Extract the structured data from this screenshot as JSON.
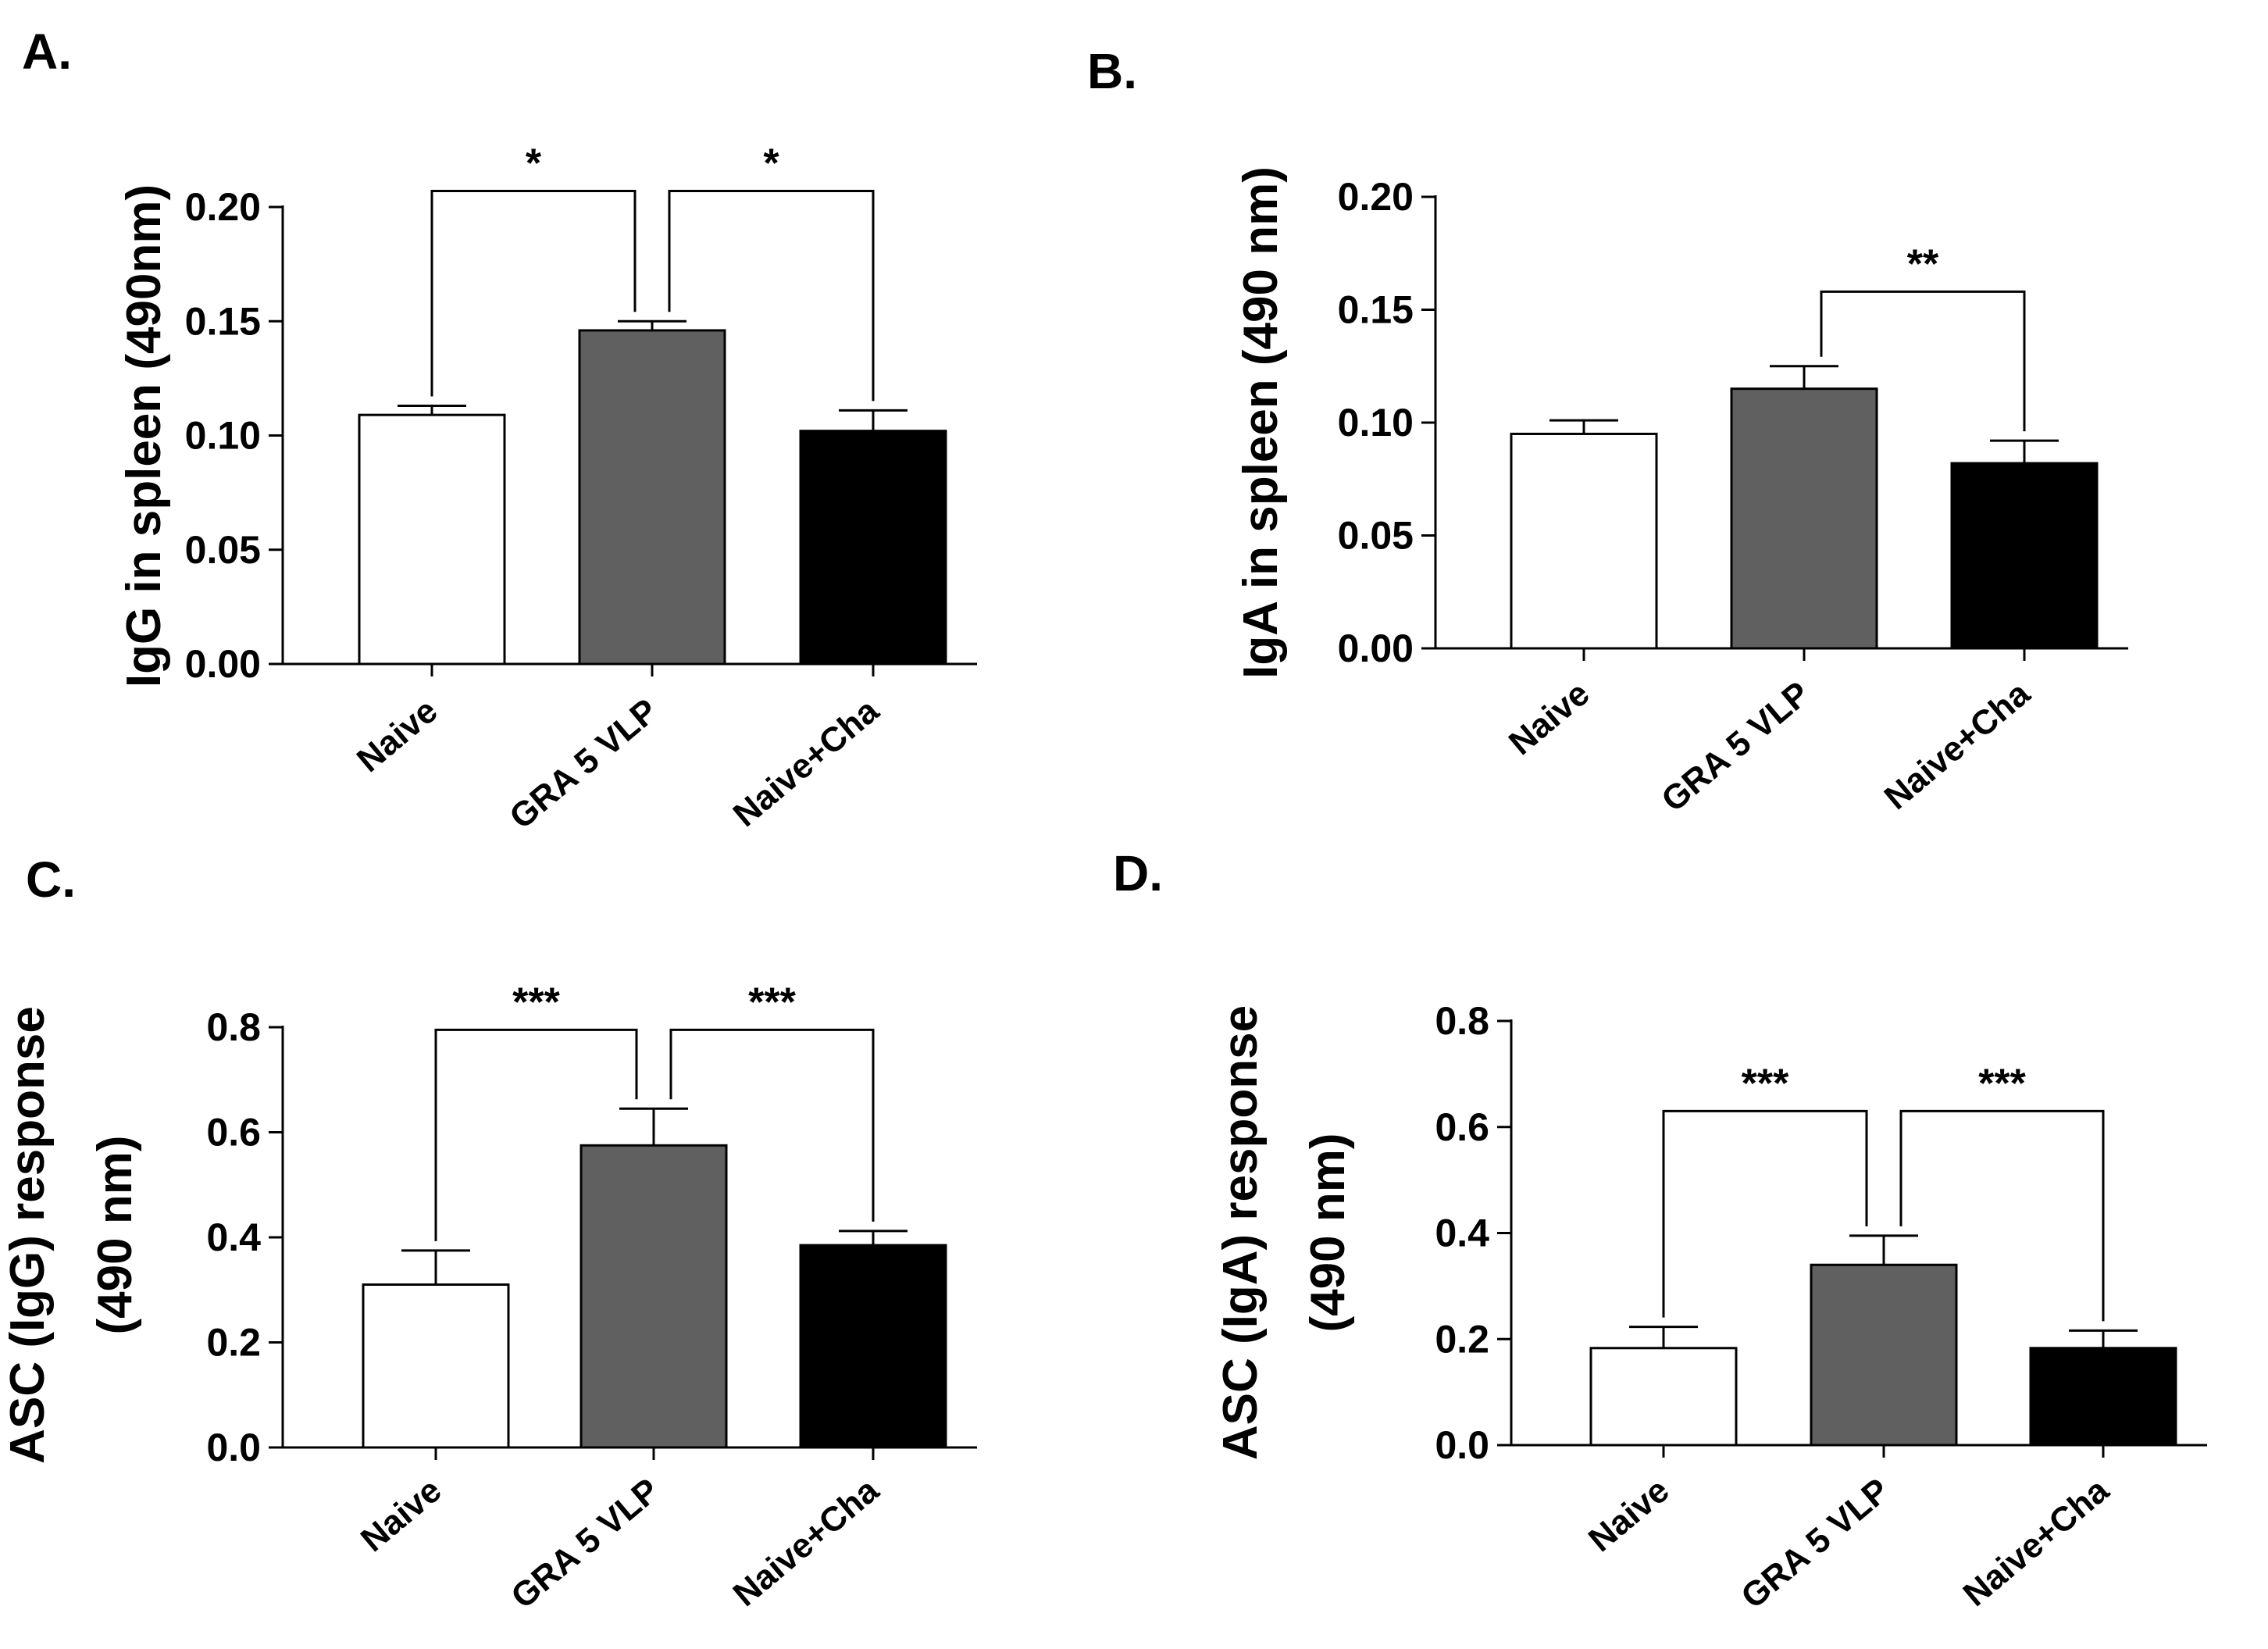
{
  "colors": {
    "Naive": "#ffffff",
    "GRA 5 VLP": "#606060",
    "Naive+Cha": "#000000",
    "stroke": "#000000"
  },
  "chart_data": [
    {
      "panel": "A.",
      "type": "bar",
      "ylabel_lines": [
        "IgG in spleen (490nm)"
      ],
      "categories": [
        "Naive",
        "GRA 5 VLP",
        "Naive+Cha"
      ],
      "values": [
        0.109,
        0.146,
        0.102
      ],
      "errors": [
        0.004,
        0.004,
        0.009
      ],
      "ylim": [
        0,
        0.2
      ],
      "yticks": [
        "0.00",
        "0.05",
        "0.10",
        "0.15",
        "0.20"
      ],
      "significance": [
        {
          "from": 0,
          "to": 1,
          "label": "*",
          "y": 0.207
        },
        {
          "from": 1,
          "to": 2,
          "label": "*",
          "y": 0.207
        }
      ]
    },
    {
      "panel": "B.",
      "type": "bar",
      "ylabel_lines": [
        "IgA in spleen (490 nm)"
      ],
      "categories": [
        "Naive",
        "GRA 5 VLP",
        "Naive+Cha"
      ],
      "values": [
        0.095,
        0.115,
        0.082
      ],
      "errors": [
        0.006,
        0.01,
        0.01
      ],
      "ylim": [
        0,
        0.2
      ],
      "yticks": [
        "0.00",
        "0.05",
        "0.10",
        "0.15",
        "0.20"
      ],
      "significance": [
        {
          "from": 1,
          "to": 2,
          "label": "**",
          "y": 0.158
        }
      ]
    },
    {
      "panel": "C.",
      "type": "bar",
      "ylabel_lines": [
        "ASC (IgG) response",
        "(490 nm)"
      ],
      "categories": [
        "Naive",
        "GRA 5 VLP",
        "Naive+Cha"
      ],
      "values": [
        0.31,
        0.575,
        0.385
      ],
      "errors": [
        0.065,
        0.07,
        0.027
      ],
      "ylim": [
        0,
        0.8
      ],
      "yticks": [
        "0.0",
        "0.2",
        "0.4",
        "0.6",
        "0.8"
      ],
      "significance": [
        {
          "from": 0,
          "to": 1,
          "label": "***",
          "y": 0.795
        },
        {
          "from": 1,
          "to": 2,
          "label": "***",
          "y": 0.795
        }
      ]
    },
    {
      "panel": "D.",
      "type": "bar",
      "ylabel_lines": [
        "ASC (IgA) response",
        "(490 nm)"
      ],
      "categories": [
        "Naive",
        "GRA 5 VLP",
        "Naive+Cha"
      ],
      "values": [
        0.183,
        0.34,
        0.183
      ],
      "errors": [
        0.04,
        0.055,
        0.033
      ],
      "ylim": [
        0,
        0.8
      ],
      "yticks": [
        "0.0",
        "0.2",
        "0.4",
        "0.6",
        "0.8"
      ],
      "significance": [
        {
          "from": 0,
          "to": 1,
          "label": "***",
          "y": 0.63
        },
        {
          "from": 1,
          "to": 2,
          "label": "***",
          "y": 0.63
        }
      ]
    }
  ]
}
